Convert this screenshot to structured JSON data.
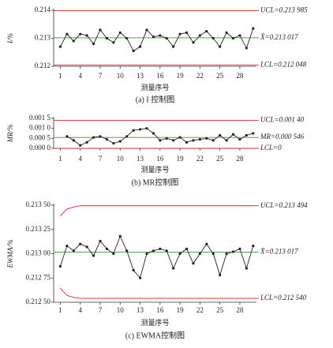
{
  "chart_data": [
    {
      "type": "line",
      "title": "(a) I 控制图",
      "xlabel": "测量序号",
      "ylabel": "I/%",
      "x": [
        1,
        2,
        3,
        4,
        5,
        6,
        7,
        8,
        9,
        10,
        11,
        12,
        13,
        14,
        15,
        16,
        17,
        18,
        19,
        20,
        21,
        22,
        23,
        24,
        25,
        26,
        27,
        28,
        29,
        30
      ],
      "xlim": [
        0,
        30.5
      ],
      "xticks": [
        1,
        4,
        7,
        10,
        13,
        16,
        19,
        22,
        25,
        28
      ],
      "ylim": [
        0.212,
        0.214
      ],
      "yticks": [
        0.212,
        0.213,
        0.214
      ],
      "series": [
        {
          "color": "#222222",
          "values": [
            0.2127,
            0.21315,
            0.2129,
            0.21315,
            0.2131,
            0.2128,
            0.2133,
            0.213,
            0.21285,
            0.2132,
            0.213,
            0.21255,
            0.2127,
            0.2133,
            0.21305,
            0.2131,
            0.213,
            0.2127,
            0.21315,
            0.2132,
            0.21285,
            0.2131,
            0.21325,
            0.213,
            0.2127,
            0.2132,
            0.213,
            0.2131,
            0.21265,
            0.21335
          ]
        }
      ],
      "control_lines": [
        {
          "label": "UCL=0.213 985",
          "value": 0.213985,
          "color": "#d62728"
        },
        {
          "label": "X̄=0.213 017",
          "value": 0.213017,
          "color": "#2ca02c"
        },
        {
          "label": "LCL=0.212 048",
          "value": 0.212048,
          "color": "#d62728"
        }
      ]
    },
    {
      "type": "line",
      "title": "(b) MR控制图",
      "xlabel": "测量序号",
      "ylabel": "MR/%",
      "x": [
        2,
        3,
        4,
        5,
        6,
        7,
        8,
        9,
        10,
        11,
        12,
        13,
        14,
        15,
        16,
        17,
        18,
        19,
        20,
        21,
        22,
        23,
        24,
        25,
        26,
        27,
        28,
        29,
        30
      ],
      "xlim": [
        0,
        30.5
      ],
      "xticks": [
        1,
        4,
        7,
        10,
        13,
        16,
        19,
        22,
        25,
        28
      ],
      "ylim": [
        0,
        0.0015
      ],
      "yticks": [
        {
          "value": 0,
          "label": "0.000 0"
        },
        {
          "value": 0.0005,
          "label": "0.000 5"
        },
        {
          "value": 0.001,
          "label": "0.001 0"
        },
        {
          "value": 0.0015,
          "label": "0.001 5"
        }
      ],
      "series": [
        {
          "color": "#222222",
          "values": [
            0.0006,
            0.0004,
            0.00015,
            0.0003,
            0.00055,
            0.0006,
            0.00045,
            0.00025,
            0.00035,
            0.0006,
            0.0009,
            0.00095,
            0.001,
            0.00075,
            0.0004,
            0.0005,
            0.0004,
            0.00055,
            0.0003,
            0.0004,
            0.00045,
            0.0005,
            0.0004,
            0.00065,
            0.0004,
            0.0007,
            0.00045,
            0.00065,
            0.00075
          ]
        }
      ],
      "control_lines": [
        {
          "label": "UCL=0.001 40",
          "value": 0.0014,
          "color": "#d62728"
        },
        {
          "label": "MR=0.000 546",
          "value": 0.000546,
          "color": "#2ca02c"
        },
        {
          "label": "LCL=0",
          "value": 0,
          "color": "#d62728"
        }
      ]
    },
    {
      "type": "line",
      "title": "(c) EWMA控制图",
      "xlabel": "测量序号",
      "ylabel": "EWMA/%",
      "x": [
        1,
        2,
        3,
        4,
        5,
        6,
        7,
        8,
        9,
        10,
        11,
        12,
        13,
        14,
        15,
        16,
        17,
        18,
        19,
        20,
        21,
        22,
        23,
        24,
        25,
        26,
        27,
        28,
        29,
        30
      ],
      "xlim": [
        0,
        30.5
      ],
      "xticks": [
        1,
        4,
        7,
        10,
        13,
        16,
        19,
        22,
        25,
        28
      ],
      "ylim": [
        0.2125,
        0.2135
      ],
      "yticks": [
        {
          "value": 0.2125,
          "label": "0.212 50"
        },
        {
          "value": 0.21275,
          "label": "0.212 75"
        },
        {
          "value": 0.213,
          "label": "0.213 00"
        },
        {
          "value": 0.21325,
          "label": "0.213 25"
        },
        {
          "value": 0.2135,
          "label": "0.213 50"
        }
      ],
      "series": [
        {
          "color": "#222222",
          "values": [
            0.21287,
            0.21308,
            0.21303,
            0.2131,
            0.21307,
            0.21298,
            0.21313,
            0.21305,
            0.213,
            0.21318,
            0.21303,
            0.21283,
            0.21275,
            0.213,
            0.21303,
            0.21305,
            0.21303,
            0.21285,
            0.213,
            0.21305,
            0.2129,
            0.213,
            0.2131,
            0.213,
            0.21278,
            0.213,
            0.21302,
            0.21305,
            0.21285,
            0.21308
          ]
        }
      ],
      "control_lines": [
        {
          "label": "UCL=0.213 494",
          "values": [
            0.21339,
            0.21346,
            0.21348,
            0.213494,
            0.213494,
            0.213494,
            0.213494,
            0.213494,
            0.213494,
            0.213494,
            0.213494,
            0.213494,
            0.213494,
            0.213494,
            0.213494,
            0.213494,
            0.213494,
            0.213494,
            0.213494,
            0.213494,
            0.213494,
            0.213494,
            0.213494,
            0.213494,
            0.213494,
            0.213494,
            0.213494,
            0.213494,
            0.213494,
            0.213494
          ],
          "color": "#d62728"
        },
        {
          "label": "X̄=0.213 017",
          "value": 0.213017,
          "color": "#2ca02c"
        },
        {
          "label": "LCL=0.212 540",
          "values": [
            0.212644,
            0.21257,
            0.21255,
            0.21254,
            0.21254,
            0.21254,
            0.21254,
            0.21254,
            0.21254,
            0.21254,
            0.21254,
            0.21254,
            0.21254,
            0.21254,
            0.21254,
            0.21254,
            0.21254,
            0.21254,
            0.21254,
            0.21254,
            0.21254,
            0.21254,
            0.21254,
            0.21254,
            0.21254,
            0.21254,
            0.21254,
            0.21254,
            0.21254,
            0.21254
          ],
          "color": "#d62728"
        }
      ]
    }
  ]
}
